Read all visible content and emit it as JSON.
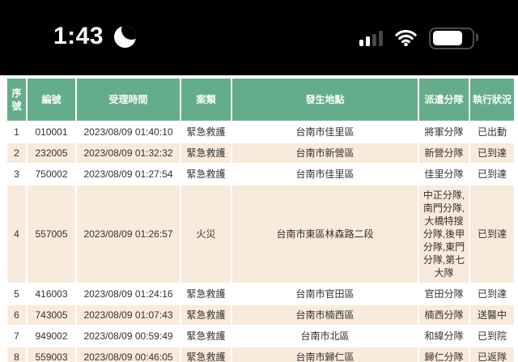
{
  "status_bar": {
    "time": "1:43",
    "focus_mode": "do-not-disturb-moon",
    "cellular": {
      "bars_total": 4,
      "bars_filled": 2
    },
    "wifi": "connected-full",
    "battery_level_visual": "about 70%"
  },
  "colors": {
    "status_bar_bg": "#000000",
    "header_green": "#64ad8b",
    "row_peach": "#faeadc",
    "row_white": "#ffffff",
    "header_text": "#f8fbf9",
    "cell_text": "#313131"
  },
  "table": {
    "columns": [
      {
        "key": "seq",
        "label": "序號"
      },
      {
        "key": "id",
        "label": "編號"
      },
      {
        "key": "time",
        "label": "受理時間"
      },
      {
        "key": "type",
        "label": "案類"
      },
      {
        "key": "location",
        "label": "發生地點"
      },
      {
        "key": "squad",
        "label": "派遣分隊"
      },
      {
        "key": "status",
        "label": "執行狀況"
      }
    ],
    "rows": [
      {
        "seq": "1",
        "id": "010001",
        "time": "2023/08/09 01:40:10",
        "type": "緊急救護",
        "location": "台南市佳里區",
        "squad": "將軍分隊",
        "status": "已出動"
      },
      {
        "seq": "2",
        "id": "232005",
        "time": "2023/08/09 01:32:32",
        "type": "緊急救護",
        "location": "台南市新營區",
        "squad": "新營分隊",
        "status": "已到達"
      },
      {
        "seq": "3",
        "id": "750002",
        "time": "2023/08/09 01:27:54",
        "type": "緊急救護",
        "location": "台南市佳里區",
        "squad": "佳里分隊",
        "status": "已到達"
      },
      {
        "seq": "4",
        "id": "557005",
        "time": "2023/08/09 01:26:57",
        "type": "火災",
        "location": "台南市東區林森路二段",
        "squad": "中正分隊, 南門分隊, 大橋特搜分隊,後甲分隊,東門分隊,第七大隊",
        "status": "已到達"
      },
      {
        "seq": "5",
        "id": "416003",
        "time": "2023/08/09 01:24:16",
        "type": "緊急救護",
        "location": "台南市官田區",
        "squad": "官田分隊",
        "status": "已到達"
      },
      {
        "seq": "6",
        "id": "743005",
        "time": "2023/08/09 01:07:43",
        "type": "緊急救護",
        "location": "台南市楠西區",
        "squad": "楠西分隊",
        "status": "送醫中"
      },
      {
        "seq": "7",
        "id": "949002",
        "time": "2023/08/09 00:59:49",
        "type": "緊急救護",
        "location": "台南市北區",
        "squad": "和緯分隊",
        "status": "已到院"
      },
      {
        "seq": "8",
        "id": "559003",
        "time": "2023/08/09 00:46:05",
        "type": "緊急救護",
        "location": "台南市歸仁區",
        "squad": "歸仁分隊",
        "status": "已返隊"
      }
    ]
  }
}
